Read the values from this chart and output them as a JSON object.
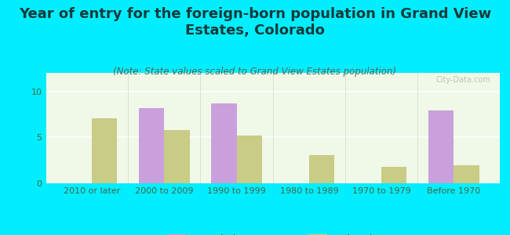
{
  "title": "Year of entry for the foreign-born population in Grand View\nEstates, Colorado",
  "subtitle": "(Note: State values scaled to Grand View Estates population)",
  "categories": [
    "2010 or later",
    "2000 to 2009",
    "1990 to 1999",
    "1980 to 1989",
    "1970 to 1979",
    "Before 1970"
  ],
  "grand_view_values": [
    0,
    8.2,
    8.7,
    0,
    0,
    7.9
  ],
  "colorado_values": [
    7.1,
    5.8,
    5.15,
    3.1,
    1.8,
    2.0
  ],
  "bar_color_gv": "#c9a0dc",
  "bar_color_co": "#c8cc85",
  "background_outer": "#00eeff",
  "background_plot_top": "#e8efe0",
  "background_plot_bottom": "#f0f8e8",
  "ylim": [
    0,
    12
  ],
  "yticks": [
    0,
    5,
    10
  ],
  "bar_width": 0.35,
  "legend_label_gv": "Grand View Estates",
  "legend_label_co": "Colorado",
  "title_fontsize": 13,
  "subtitle_fontsize": 8.5,
  "tick_fontsize": 8,
  "legend_fontsize": 9,
  "title_color": "#1a3a3a",
  "subtitle_color": "#556655",
  "tick_color": "#446644"
}
